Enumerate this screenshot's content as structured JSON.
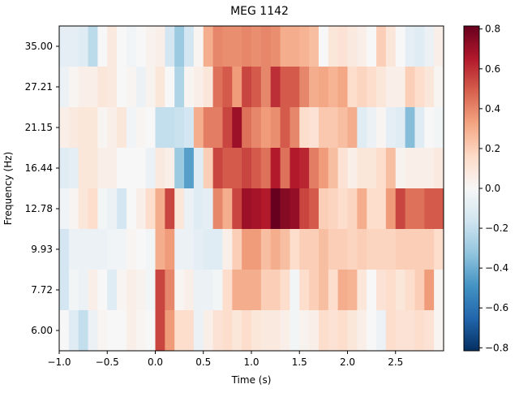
{
  "chart_data": {
    "type": "heatmap",
    "title": "MEG 1142",
    "xlabel": "Time (s)",
    "ylabel": "Frequency (Hz)",
    "xlim": [
      -1.0,
      3.0
    ],
    "x_ticks": [
      -1.0,
      -0.5,
      0.0,
      0.5,
      1.0,
      1.5,
      2.0,
      2.5
    ],
    "x_tick_labels": [
      "−1.0",
      "−0.5",
      "0.0",
      "0.5",
      "1.0",
      "1.5",
      "2.0",
      "2.5"
    ],
    "time_bins_start": -1.0,
    "time_bin_step": 0.1,
    "colormap": "RdBu_r",
    "vmin": -0.815,
    "vmax": 0.815,
    "colorbar_ticks": [
      0.8,
      0.6,
      0.4,
      0.2,
      0.0,
      -0.2,
      -0.4,
      -0.6,
      -0.8
    ],
    "colorbar_tick_labels": [
      "0.8",
      "0.6",
      "0.4",
      "0.2",
      "0.0",
      "−0.2",
      "−0.4",
      "−0.6",
      "−0.8"
    ],
    "colormap_stops": [
      "#053061",
      "#2166ac",
      "#4393c3",
      "#92c5de",
      "#d1e5f0",
      "#f7f7f7",
      "#fddbc7",
      "#f4a582",
      "#d6604d",
      "#b2182b",
      "#67001f"
    ],
    "rows": [
      {
        "frequency": "35.00",
        "values": [
          -0.08,
          -0.08,
          -0.1,
          -0.22,
          0,
          0.08,
          0,
          -0.03,
          0,
          0.03,
          0.05,
          -0.15,
          -0.3,
          -0.15,
          0.02,
          0.3,
          0.4,
          0.38,
          0.38,
          0.4,
          0.38,
          0.4,
          0.38,
          0.3,
          0.3,
          0.28,
          0.25,
          0,
          0.1,
          0.12,
          0.08,
          0.05,
          0,
          0.2,
          0.1,
          0,
          -0.08,
          -0.1,
          -0.05,
          0.05
        ]
      },
      {
        "frequency": "27.21",
        "values": [
          -0.05,
          0.02,
          0.05,
          0.05,
          0.1,
          0.08,
          0,
          0.02,
          -0.05,
          0.03,
          0.1,
          0,
          -0.25,
          0.02,
          0.05,
          0.1,
          0.45,
          0.5,
          0.35,
          0.55,
          0.5,
          0.4,
          0.6,
          0.5,
          0.5,
          0.4,
          0.3,
          0.32,
          0.28,
          0.32,
          0.15,
          0.18,
          0.15,
          0.1,
          0.05,
          0.05,
          0.2,
          0.15,
          0.1,
          0.02
        ]
      },
      {
        "frequency": "21.15",
        "values": [
          0.05,
          0.08,
          0.1,
          0.1,
          0.02,
          0.05,
          0.1,
          -0.03,
          0.02,
          0,
          -0.2,
          -0.2,
          -0.18,
          -0.15,
          0.3,
          0.42,
          0.42,
          0.55,
          0.7,
          0.45,
          0.4,
          0.35,
          0.38,
          0.5,
          0.4,
          0.15,
          0.12,
          0.22,
          0.22,
          0.25,
          0.3,
          -0.1,
          -0.05,
          0.02,
          -0.08,
          -0.1,
          -0.35,
          -0.1,
          0,
          -0.02
        ]
      },
      {
        "frequency": "16.44",
        "values": [
          -0.1,
          -0.08,
          0.1,
          0.1,
          0.05,
          0.05,
          0,
          0,
          0,
          -0.05,
          0.08,
          0.05,
          -0.3,
          -0.45,
          -0.1,
          0.2,
          0.55,
          0.5,
          0.5,
          0.55,
          0.5,
          0.45,
          0.65,
          0.45,
          0.65,
          0.62,
          0.42,
          0.35,
          0.25,
          0.12,
          0.05,
          0.1,
          0.1,
          0.15,
          0.25,
          0.03,
          0.05,
          0.05,
          0.05,
          0.08
        ]
      },
      {
        "frequency": "12.78",
        "values": [
          -0.03,
          0.02,
          0.1,
          0.15,
          -0.02,
          -0.05,
          -0.15,
          0,
          0.05,
          0.15,
          0.3,
          0.55,
          0.1,
          -0.05,
          -0.1,
          -0.08,
          0.4,
          0.3,
          0.55,
          0.7,
          0.68,
          0.65,
          0.82,
          0.75,
          0.72,
          0.55,
          0.5,
          0.2,
          0.18,
          0.15,
          0.18,
          0.3,
          0.15,
          0.15,
          0.35,
          0.55,
          0.45,
          0.45,
          0.5,
          0.5
        ]
      },
      {
        "frequency": "9.93",
        "values": [
          -0.15,
          -0.05,
          -0.05,
          -0.05,
          -0.05,
          -0.03,
          -0.03,
          0.02,
          0,
          -0.02,
          0.3,
          0.35,
          -0.05,
          -0.05,
          -0.08,
          -0.1,
          -0.1,
          0.05,
          0.2,
          0.35,
          0.35,
          0.25,
          0.3,
          0.25,
          0.15,
          0.2,
          0.2,
          0.25,
          0.2,
          0.2,
          0.18,
          0.2,
          0.18,
          0.18,
          0.18,
          0.2,
          0.2,
          0.2,
          0.2,
          0.15
        ]
      },
      {
        "frequency": "7.72",
        "values": [
          -0.15,
          -0.02,
          -0.05,
          0.05,
          0,
          -0.1,
          0.02,
          0.05,
          0.03,
          -0.02,
          0.55,
          0.4,
          0.02,
          0.05,
          -0.05,
          -0.05,
          -0.02,
          0.15,
          0.3,
          0.3,
          0.3,
          0.2,
          0.2,
          0.15,
          -0.02,
          0.15,
          0.2,
          0.25,
          0.15,
          0.3,
          0.28,
          0.1,
          0,
          0.12,
          0.15,
          0.1,
          0.15,
          0.2,
          0.35,
          0.02
        ]
      },
      {
        "frequency": "6.00",
        "values": [
          0,
          -0.1,
          -0.2,
          -0.05,
          0.02,
          0,
          0,
          0.05,
          0.02,
          0,
          0.55,
          0.35,
          0.15,
          0.15,
          -0.05,
          0.05,
          0.12,
          0.15,
          0.1,
          0.15,
          0.1,
          0.08,
          0.08,
          0.05,
          -0.02,
          0.03,
          0.05,
          0.15,
          0.12,
          0.15,
          0.1,
          0.05,
          0,
          -0.05,
          0.15,
          0.12,
          0.12,
          0.15,
          0.12,
          0.02
        ]
      }
    ]
  }
}
